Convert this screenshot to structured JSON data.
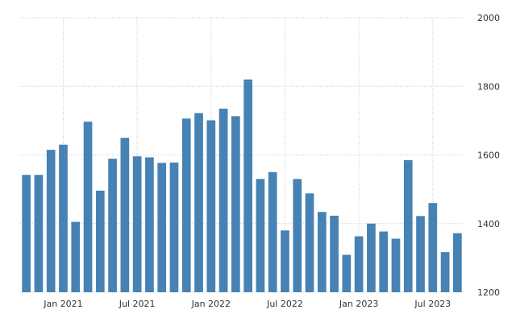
{
  "chart_data": {
    "type": "bar",
    "color": "#4682b4",
    "grid": true,
    "grid_style": "dotted",
    "y_axis_position": "right",
    "ylim": [
      1200,
      2000
    ],
    "y_ticks": [
      {
        "value": 1200,
        "label": "1200"
      },
      {
        "value": 1400,
        "label": "1400"
      },
      {
        "value": 1600,
        "label": "1600"
      },
      {
        "value": 1800,
        "label": "1800"
      },
      {
        "value": 2000,
        "label": "2000"
      }
    ],
    "x_ticks": [
      {
        "category": "2021-01",
        "label": "Jan 2021"
      },
      {
        "category": "2021-07",
        "label": "Jul 2021"
      },
      {
        "category": "2022-01",
        "label": "Jan 2022"
      },
      {
        "category": "2022-07",
        "label": "Jul 2022"
      },
      {
        "category": "2023-01",
        "label": "Jan 2023"
      },
      {
        "category": "2023-07",
        "label": "Jul 2023"
      }
    ],
    "categories": [
      "2020-10",
      "2020-11",
      "2020-12",
      "2021-01",
      "2021-02",
      "2021-03",
      "2021-04",
      "2021-05",
      "2021-06",
      "2021-07",
      "2021-08",
      "2021-09",
      "2021-10",
      "2021-11",
      "2021-12",
      "2022-01",
      "2022-02",
      "2022-03",
      "2022-04",
      "2022-05",
      "2022-06",
      "2022-07",
      "2022-08",
      "2022-09",
      "2022-10",
      "2022-11",
      "2022-12",
      "2023-01",
      "2023-02",
      "2023-03",
      "2023-04",
      "2023-05",
      "2023-06",
      "2023-07",
      "2023-08",
      "2023-09"
    ],
    "values": [
      1542,
      1542,
      1615,
      1630,
      1405,
      1697,
      1496,
      1589,
      1650,
      1596,
      1593,
      1577,
      1578,
      1706,
      1722,
      1701,
      1735,
      1713,
      1820,
      1530,
      1550,
      1380,
      1530,
      1488,
      1434,
      1423,
      1309,
      1363,
      1400,
      1377,
      1356,
      1585,
      1422,
      1460,
      1317,
      1372
    ]
  }
}
